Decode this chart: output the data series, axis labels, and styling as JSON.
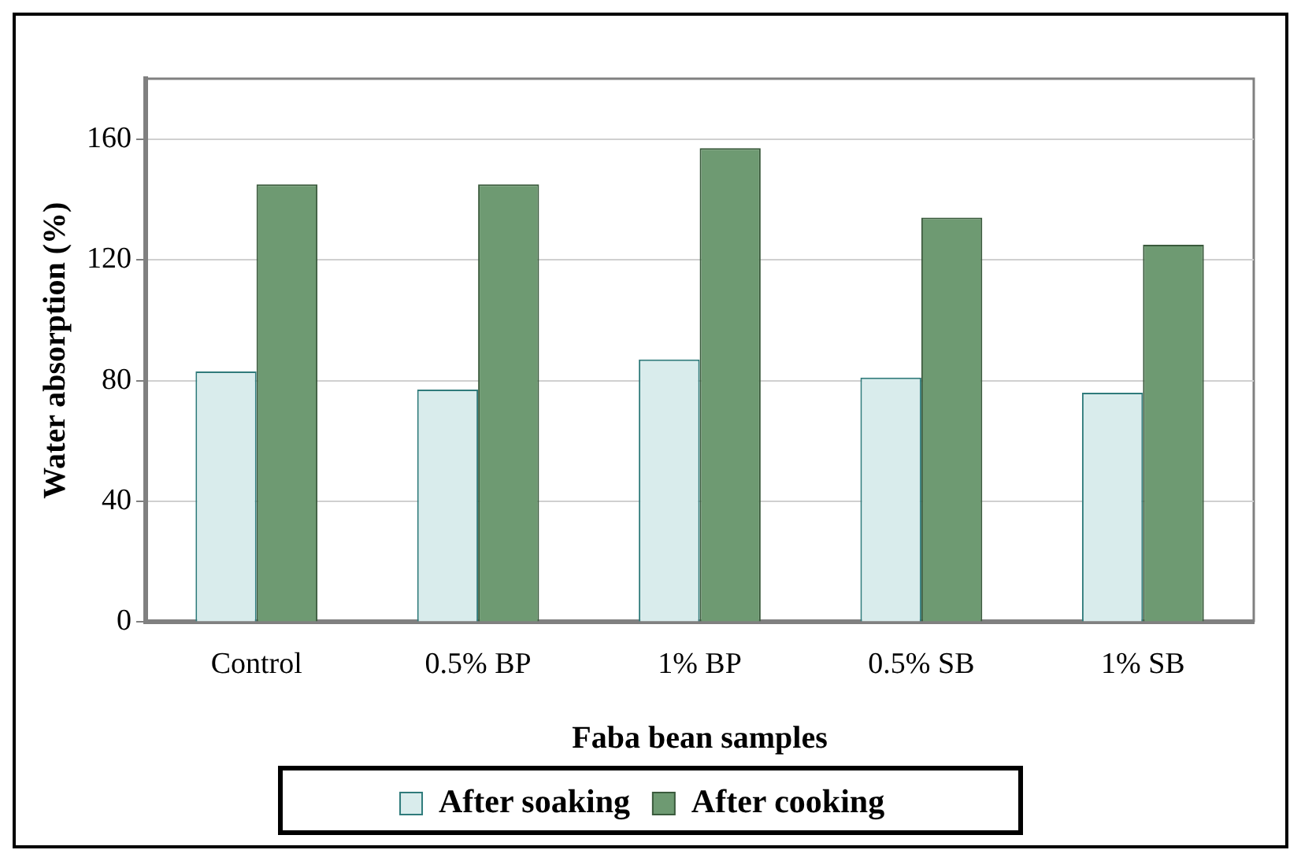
{
  "chart_data": {
    "type": "bar",
    "xlabel": "Faba bean samples",
    "ylabel": "Water absorption (%)",
    "categories": [
      "Control",
      "0.5% BP",
      "1% BP",
      "0.5% SB",
      "1% SB"
    ],
    "series": [
      {
        "name": "After soaking",
        "color": "#d9ecec",
        "values": [
          83,
          77,
          87,
          81,
          76
        ]
      },
      {
        "name": "After cooking",
        "color": "#6e9a72",
        "values": [
          145,
          145,
          157,
          134,
          125
        ]
      }
    ],
    "ylim": [
      0,
      180
    ],
    "yticks": [
      0,
      40,
      80,
      120,
      160
    ],
    "grid": "y",
    "legend": "bottom"
  }
}
